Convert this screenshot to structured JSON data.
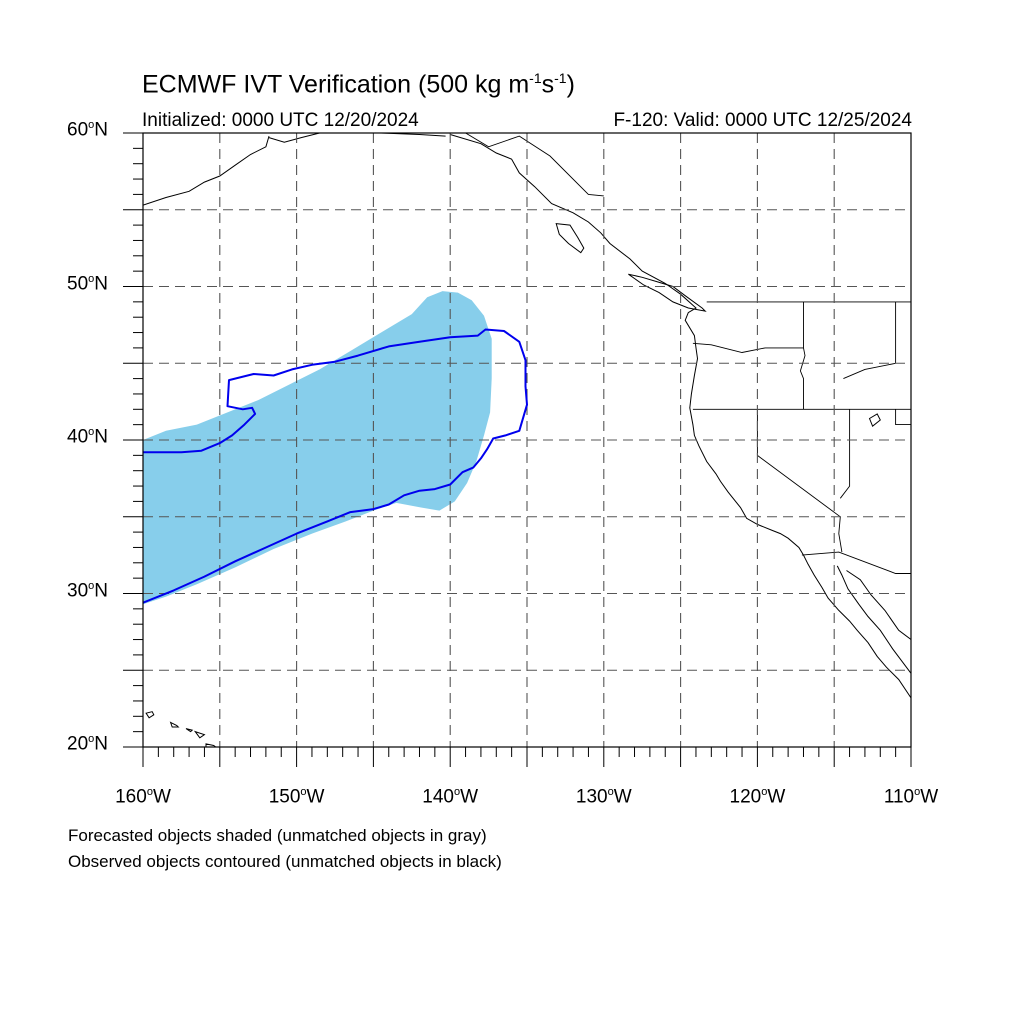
{
  "title": {
    "main": "ECMWF IVT Verification (500 kg m",
    "sup1": "-1",
    "mid": "s",
    "sup2": "-1",
    "end": ")"
  },
  "initialized": "Initialized: 0000 UTC 12/20/2024",
  "valid": "F-120: Valid: 0000 UTC 12/25/2024",
  "lat_labels": [
    {
      "deg": "60",
      "hem": "N"
    },
    {
      "deg": "50",
      "hem": "N"
    },
    {
      "deg": "40",
      "hem": "N"
    },
    {
      "deg": "30",
      "hem": "N"
    },
    {
      "deg": "20",
      "hem": "N"
    }
  ],
  "lon_labels": [
    {
      "deg": "160",
      "hem": "W"
    },
    {
      "deg": "150",
      "hem": "W"
    },
    {
      "deg": "140",
      "hem": "W"
    },
    {
      "deg": "130",
      "hem": "W"
    },
    {
      "deg": "120",
      "hem": "W"
    },
    {
      "deg": "110",
      "hem": "W"
    }
  ],
  "notes": {
    "line1": "Forecasted objects shaded (unmatched objects in gray)",
    "line2": "Observed objects contoured (unmatched objects in black)"
  },
  "colors": {
    "forecast_fill": "#87ceeb",
    "observed_contour": "#0000ee",
    "coastline": "#000000",
    "grid": "#555555"
  },
  "map": {
    "lon_range": [
      -160,
      -110
    ],
    "lat_range": [
      20,
      60
    ],
    "grid_spacing_deg": 5,
    "forecast_object": [
      [
        -160,
        40
      ],
      [
        -158.5,
        40.6
      ],
      [
        -156.5,
        41
      ],
      [
        -154.5,
        41.8
      ],
      [
        -152.5,
        42.6
      ],
      [
        -150.5,
        43.6
      ],
      [
        -148.5,
        44.6
      ],
      [
        -146.5,
        45.8
      ],
      [
        -144.5,
        47
      ],
      [
        -142.5,
        48.2
      ],
      [
        -141.5,
        49.3
      ],
      [
        -140.5,
        49.7
      ],
      [
        -139.5,
        49.6
      ],
      [
        -138.6,
        49.1
      ],
      [
        -137.8,
        48.1
      ],
      [
        -137.3,
        46.6
      ],
      [
        -137.3,
        44
      ],
      [
        -137.4,
        41.8
      ],
      [
        -137.8,
        40.3
      ],
      [
        -138.3,
        38.6
      ],
      [
        -138.9,
        37.2
      ],
      [
        -139.7,
        36
      ],
      [
        -140.7,
        35.4
      ],
      [
        -141.9,
        35.6
      ],
      [
        -143.5,
        35.9
      ],
      [
        -145,
        35.4
      ],
      [
        -146.8,
        34.7
      ],
      [
        -149,
        33.9
      ],
      [
        -151.5,
        32.9
      ],
      [
        -154,
        31.7
      ],
      [
        -156.5,
        30.6
      ],
      [
        -158.5,
        29.8
      ],
      [
        -160,
        29.3
      ]
    ],
    "observed_object": [
      [
        -160,
        39.2
      ],
      [
        -158.8,
        39.2
      ],
      [
        -157.5,
        39.2
      ],
      [
        -156.2,
        39.3
      ],
      [
        -155,
        39.8
      ],
      [
        -154.2,
        40.3
      ],
      [
        -153.4,
        41
      ],
      [
        -152.7,
        41.7
      ],
      [
        -152.9,
        42.1
      ],
      [
        -153.5,
        42
      ],
      [
        -154.5,
        42.2
      ],
      [
        -154.4,
        43.9
      ],
      [
        -152.8,
        44.3
      ],
      [
        -151.5,
        44.2
      ],
      [
        -150.3,
        44.6
      ],
      [
        -149,
        44.9
      ],
      [
        -147.5,
        45.1
      ],
      [
        -146,
        45.5
      ],
      [
        -144,
        46.1
      ],
      [
        -142,
        46.4
      ],
      [
        -140,
        46.7
      ],
      [
        -138.2,
        46.8
      ],
      [
        -137.7,
        47.2
      ],
      [
        -136.5,
        47.1
      ],
      [
        -135.5,
        46.4
      ],
      [
        -135.1,
        45.2
      ],
      [
        -135.1,
        43.5
      ],
      [
        -135,
        42.3
      ],
      [
        -135.5,
        40.6
      ],
      [
        -136.4,
        40.3
      ],
      [
        -137.2,
        40.1
      ],
      [
        -137.6,
        39.4
      ],
      [
        -138,
        38.8
      ],
      [
        -138.5,
        38.2
      ],
      [
        -139.2,
        37.9
      ],
      [
        -140,
        37.1
      ],
      [
        -141,
        36.8
      ],
      [
        -142,
        36.7
      ],
      [
        -143,
        36.4
      ],
      [
        -144,
        35.8
      ],
      [
        -145,
        35.5
      ],
      [
        -146.5,
        35.3
      ],
      [
        -148,
        34.7
      ],
      [
        -150,
        33.9
      ],
      [
        -152,
        33
      ],
      [
        -154,
        32.1
      ],
      [
        -156,
        31.1
      ],
      [
        -158,
        30.2
      ],
      [
        -160,
        29.4
      ]
    ],
    "coast_na": [
      [
        -140,
        59.9
      ],
      [
        -138,
        59.3
      ],
      [
        -137,
        58.7
      ],
      [
        -136,
        58.3
      ],
      [
        -135.5,
        57.4
      ],
      [
        -134.5,
        56.5
      ],
      [
        -133.4,
        55.4
      ],
      [
        -132,
        54.8
      ],
      [
        -131,
        54.2
      ],
      [
        -130.2,
        53.5
      ],
      [
        -129.6,
        52.8
      ],
      [
        -128.3,
        51.8
      ],
      [
        -127.5,
        51
      ],
      [
        -126,
        50.2
      ],
      [
        -125,
        49.5
      ],
      [
        -124,
        48.6
      ],
      [
        -124.5,
        48.3
      ],
      [
        -124.7,
        47.8
      ],
      [
        -124.1,
        46.8
      ],
      [
        -124,
        46
      ],
      [
        -123.9,
        45.3
      ],
      [
        -124.1,
        44.2
      ],
      [
        -124.3,
        43
      ],
      [
        -124.4,
        42.1
      ],
      [
        -124.2,
        41
      ],
      [
        -124.1,
        40.3
      ],
      [
        -123.8,
        39.6
      ],
      [
        -123.3,
        38.6
      ],
      [
        -122.7,
        37.8
      ],
      [
        -122.4,
        37.3
      ],
      [
        -121.9,
        36.6
      ],
      [
        -121.1,
        35.6
      ],
      [
        -120.7,
        34.9
      ],
      [
        -120,
        34.5
      ],
      [
        -119,
        34.1
      ],
      [
        -118.5,
        33.9
      ],
      [
        -118,
        33.6
      ],
      [
        -117.3,
        33
      ],
      [
        -117,
        32.5
      ],
      [
        -116.7,
        31.9
      ],
      [
        -116.3,
        31.2
      ],
      [
        -115.8,
        30.4
      ],
      [
        -115.4,
        29.7
      ],
      [
        -114.7,
        28.9
      ],
      [
        -114,
        28.2
      ],
      [
        -113.5,
        27.6
      ],
      [
        -112.8,
        26.8
      ],
      [
        -112.2,
        25.9
      ],
      [
        -111.6,
        25.2
      ],
      [
        -110.8,
        24.4
      ],
      [
        -110,
        23.2
      ]
    ],
    "coast_gulf": [
      [
        -114.8,
        31.8
      ],
      [
        -114.5,
        31.2
      ],
      [
        -114.1,
        30.3
      ],
      [
        -113.4,
        29.3
      ],
      [
        -112.8,
        28.5
      ],
      [
        -112,
        27.6
      ],
      [
        -111.2,
        26.4
      ],
      [
        -110.3,
        25.2
      ],
      [
        -110,
        24.8
      ]
    ],
    "coast_gulf_east": [
      [
        -114.2,
        31.5
      ],
      [
        -113.3,
        30.9
      ],
      [
        -112.6,
        29.9
      ],
      [
        -111.7,
        28.9
      ],
      [
        -110.8,
        27.6
      ],
      [
        -110,
        27
      ]
    ],
    "vancouver_island": [
      [
        -128.4,
        50.8
      ],
      [
        -127.5,
        50.6
      ],
      [
        -126.5,
        50.3
      ],
      [
        -125.5,
        50
      ],
      [
        -124.7,
        49.4
      ],
      [
        -123.6,
        48.6
      ],
      [
        -123.4,
        48.4
      ],
      [
        -124.5,
        48.6
      ],
      [
        -125.5,
        49
      ],
      [
        -126.4,
        49.6
      ],
      [
        -127.4,
        50.1
      ],
      [
        -128.4,
        50.8
      ]
    ],
    "haida_gwaii": [
      [
        -133.1,
        54.1
      ],
      [
        -132.2,
        54
      ],
      [
        -131.7,
        53.2
      ],
      [
        -131.3,
        52.5
      ],
      [
        -131.5,
        52.2
      ],
      [
        -132.3,
        52.8
      ],
      [
        -132.9,
        53.4
      ],
      [
        -133.1,
        54.1
      ]
    ],
    "kodiak_coast": [
      [
        -160,
        55.3
      ],
      [
        -158.5,
        55.8
      ],
      [
        -157,
        56.2
      ],
      [
        -156,
        56.8
      ],
      [
        -155,
        57.2
      ],
      [
        -154,
        57.9
      ],
      [
        -153,
        58.6
      ],
      [
        -152,
        59.1
      ],
      [
        -151.8,
        59.8
      ]
    ],
    "kenai": [
      [
        -151.8,
        59.7
      ],
      [
        -150.8,
        59.4
      ],
      [
        -149.7,
        59.7
      ],
      [
        -148.5,
        60
      ]
    ],
    "alaska_coast_east": [
      [
        -146,
        60
      ],
      [
        -144.5,
        60
      ],
      [
        -142,
        59.9
      ],
      [
        -140.3,
        59.8
      ]
    ],
    "hawaii_islands": [
      [
        [
          -159.8,
          22.2
        ],
        [
          -159.4,
          22.3
        ],
        [
          -159.3,
          22.1
        ],
        [
          -159.6,
          21.9
        ],
        [
          -159.8,
          22.2
        ]
      ],
      [
        [
          -158.2,
          21.6
        ],
        [
          -157.8,
          21.4
        ],
        [
          -157.7,
          21.3
        ],
        [
          -158.1,
          21.3
        ],
        [
          -158.2,
          21.6
        ]
      ],
      [
        [
          -157.2,
          21.2
        ],
        [
          -156.8,
          21.1
        ],
        [
          -156.9,
          21.0
        ],
        [
          -157.2,
          21.2
        ]
      ],
      [
        [
          -156.6,
          21.0
        ],
        [
          -156.0,
          20.8
        ],
        [
          -156.3,
          20.6
        ],
        [
          -156.6,
          21.0
        ]
      ],
      [
        [
          -155.9,
          20.2
        ],
        [
          -155.4,
          20.1
        ],
        [
          -155.0,
          19.8
        ],
        [
          -155.2,
          19.6
        ],
        [
          -155.5,
          19.4
        ],
        [
          -155.9,
          19.8
        ],
        [
          -155.9,
          20.2
        ]
      ]
    ],
    "borders": [
      [
        [
          -123.3,
          49
        ],
        [
          -110,
          49
        ]
      ],
      [
        [
          -124.2,
          46.3
        ],
        [
          -123,
          46.2
        ],
        [
          -121,
          45.7
        ],
        [
          -119.5,
          46
        ],
        [
          -117,
          46
        ]
      ],
      [
        [
          -117,
          49
        ],
        [
          -117,
          46
        ],
        [
          -116.9,
          45.5
        ],
        [
          -117.2,
          44.5
        ],
        [
          -117,
          44
        ],
        [
          -117,
          42
        ]
      ],
      [
        [
          -124.2,
          42
        ],
        [
          -110,
          42
        ]
      ],
      [
        [
          -120,
          42
        ],
        [
          -120,
          39
        ],
        [
          -114.6,
          35
        ],
        [
          -114.7,
          33.9
        ],
        [
          -114.5,
          32.7
        ]
      ],
      [
        [
          -114,
          42
        ],
        [
          -114,
          37
        ],
        [
          -114.6,
          36.2
        ]
      ],
      [
        [
          -117.1,
          32.5
        ],
        [
          -114.7,
          32.7
        ],
        [
          -111,
          31.3
        ],
        [
          -110,
          31.3
        ]
      ],
      [
        [
          -111,
          45
        ],
        [
          -111,
          49
        ]
      ],
      [
        [
          -114.4,
          44
        ],
        [
          -113,
          44.6
        ],
        [
          -111,
          45
        ]
      ],
      [
        [
          -111,
          42
        ],
        [
          -111,
          41
        ],
        [
          -110,
          41
        ]
      ],
      [
        [
          -139,
          60
        ],
        [
          -137.5,
          59.1
        ],
        [
          -135.5,
          59.8
        ],
        [
          -133.5,
          58.5
        ],
        [
          -131,
          56
        ],
        [
          -130,
          55.9
        ]
      ]
    ],
    "lakes": [
      [
        [
          -112.7,
          41.4
        ],
        [
          -112.2,
          41.7
        ],
        [
          -112,
          41.3
        ],
        [
          -112.5,
          40.9
        ],
        [
          -112.7,
          41.4
        ]
      ]
    ]
  }
}
